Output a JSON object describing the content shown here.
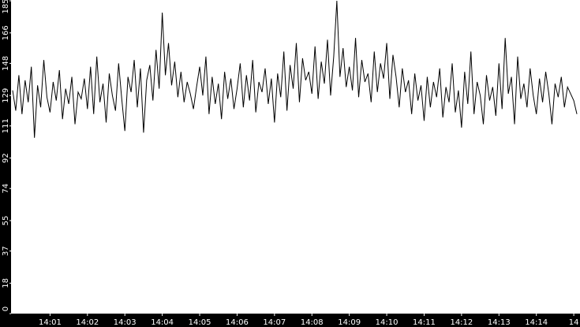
{
  "chart_data": {
    "type": "line",
    "color": "#000000",
    "values": [
      132,
      120,
      141,
      118,
      138,
      125,
      146,
      104,
      135,
      122,
      150,
      128,
      119,
      137,
      126,
      144,
      115,
      133,
      124,
      140,
      112,
      131,
      127,
      139,
      121,
      146,
      118,
      152,
      125,
      136,
      113,
      142,
      129,
      120,
      148,
      127,
      108,
      140,
      131,
      150,
      122,
      145,
      107,
      138,
      147,
      126,
      156,
      133,
      178,
      141,
      160,
      135,
      149,
      128,
      143,
      125,
      137,
      130,
      121,
      134,
      146,
      129,
      152,
      118,
      140,
      124,
      136,
      115,
      143,
      127,
      139,
      121,
      133,
      148,
      122,
      141,
      126,
      150,
      119,
      137,
      131,
      145,
      124,
      139,
      113,
      142,
      128,
      155,
      120,
      147,
      133,
      160,
      125,
      151,
      138,
      143,
      130,
      158,
      127,
      149,
      136,
      162,
      129,
      152,
      185,
      140,
      157,
      134,
      146,
      132,
      163,
      128,
      150,
      137,
      142,
      125,
      155,
      131,
      148,
      139,
      160,
      127,
      153,
      140,
      122,
      145,
      131,
      138,
      118,
      142,
      126,
      135,
      114,
      140,
      122,
      137,
      128,
      145,
      116,
      134,
      125,
      148,
      119,
      132,
      110,
      143,
      124,
      155,
      118,
      137,
      129,
      112,
      141,
      126,
      134,
      117,
      148,
      121,
      163,
      130,
      140,
      112,
      152,
      127,
      136,
      122,
      145,
      129,
      118,
      139,
      125,
      143,
      130,
      112,
      136,
      128,
      140,
      122,
      134,
      130,
      126,
      118
    ],
    "xlim": [
      0,
      182
    ],
    "xticks": [
      {
        "value": 12,
        "label": "14:01"
      },
      {
        "value": 24,
        "label": "14:02"
      },
      {
        "value": 36,
        "label": "14:03"
      },
      {
        "value": 48,
        "label": "14:04"
      },
      {
        "value": 60,
        "label": "14:05"
      },
      {
        "value": 72,
        "label": "14:06"
      },
      {
        "value": 84,
        "label": "14:07"
      },
      {
        "value": 96,
        "label": "14:08"
      },
      {
        "value": 108,
        "label": "14:09"
      },
      {
        "value": 120,
        "label": "14:10"
      },
      {
        "value": 132,
        "label": "14:11"
      },
      {
        "value": 144,
        "label": "14:12"
      },
      {
        "value": 156,
        "label": "14:13"
      },
      {
        "value": 168,
        "label": "14:14"
      },
      {
        "value": 180,
        "label": "14"
      }
    ],
    "ylim": [
      0,
      185
    ],
    "yticks": [
      0,
      18,
      37,
      55,
      74,
      92,
      111,
      129,
      148,
      166,
      185
    ]
  }
}
